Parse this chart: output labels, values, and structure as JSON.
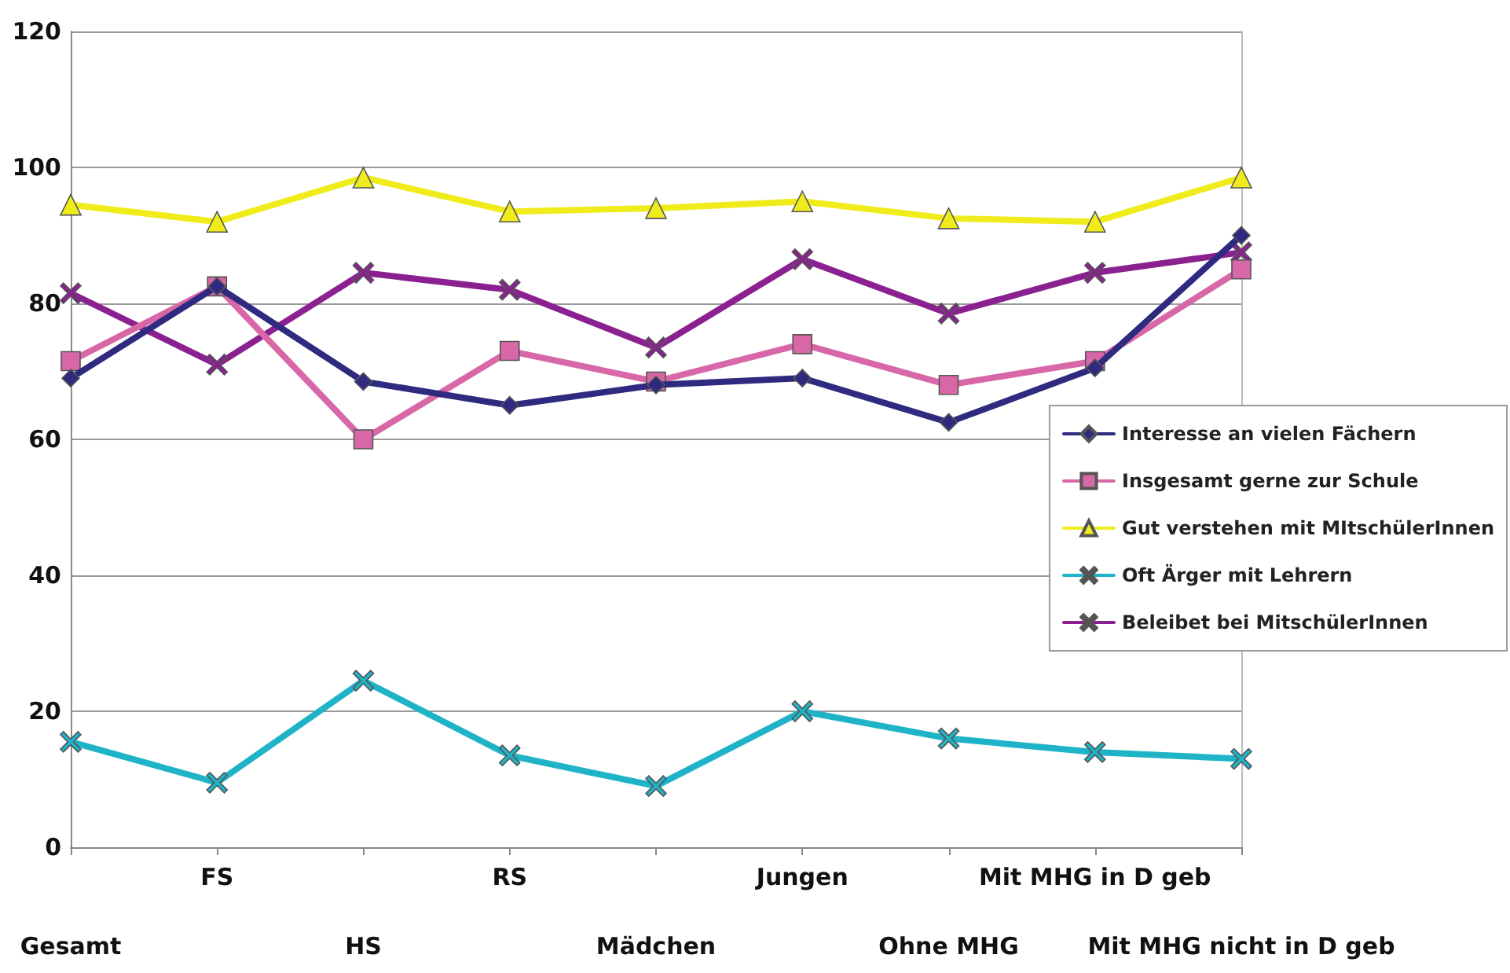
{
  "chart_data": {
    "type": "line",
    "categories": [
      "Gesamt",
      "FS",
      "HS",
      "RS",
      "Mädchen",
      "Jungen",
      "Ohne MHG",
      "Mit MHG in D geb",
      "Mit MHG nicht in D geb"
    ],
    "series": [
      {
        "name": "Interesse an vielen Fächern",
        "color": "#2e2a7f",
        "marker": "diamond",
        "values": [
          69,
          82.5,
          68.5,
          65,
          68,
          69,
          62.5,
          70.5,
          90
        ]
      },
      {
        "name": "Insgesamt gerne zur Schule",
        "color": "#d867a8",
        "marker": "square",
        "values": [
          71.5,
          82.5,
          60,
          73,
          68.5,
          74,
          68,
          71.5,
          85
        ]
      },
      {
        "name": "Gut verstehen mit MItschülerInnen",
        "color": "#f0ec1c",
        "marker": "triangle",
        "values": [
          94.5,
          92,
          98.5,
          93.5,
          94,
          95,
          92.5,
          92,
          98.5
        ]
      },
      {
        "name": "Oft Ärger mit Lehrern",
        "color": "#1fb3c8",
        "marker": "cross",
        "values": [
          15.5,
          9.5,
          24.5,
          13.5,
          9,
          20,
          16,
          14,
          13
        ]
      },
      {
        "name": "Beleibet bei MitschülerInnen",
        "color": "#8b2190",
        "marker": "cross",
        "values": [
          81.5,
          71,
          84.5,
          82,
          73.5,
          86.5,
          78.5,
          84.5,
          87.5
        ]
      }
    ],
    "ylim": [
      0,
      120
    ],
    "yticks": [
      0,
      20,
      40,
      60,
      80,
      100,
      120
    ],
    "grid": "y",
    "legend": "right",
    "line_style": "solid"
  }
}
